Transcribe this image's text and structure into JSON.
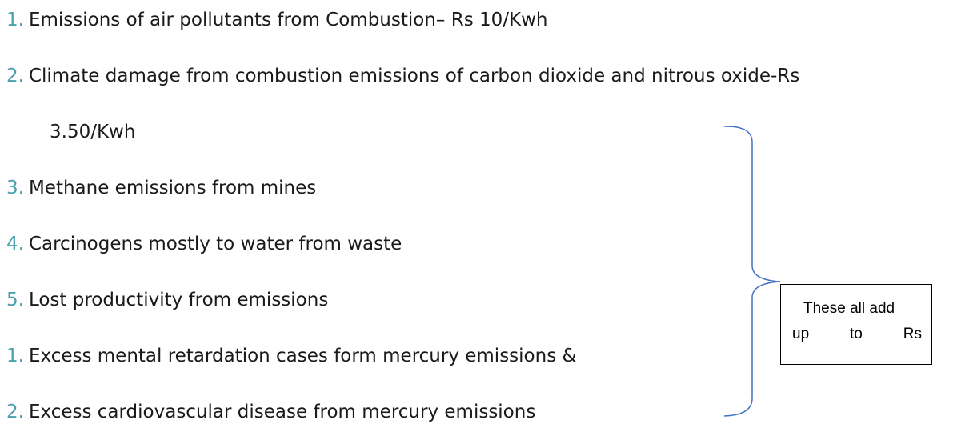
{
  "items": [
    {
      "number": "1.",
      "text": "Emissions of air pollutants from Combustion– Rs 10/Kwh"
    },
    {
      "number": "2.",
      "text": "Climate damage from combustion emissions of carbon dioxide and nitrous oxide-Rs",
      "continuation": "3.50/Kwh"
    },
    {
      "number": "3.",
      "text": "Methane emissions from mines"
    },
    {
      "number": "4.",
      "text": "Carcinogens mostly to water from waste"
    },
    {
      "number": "5.",
      "text": "Lost productivity from emissions"
    },
    {
      "number": "1.",
      "text": "Excess mental retardation cases form mercury emissions &"
    },
    {
      "number": "2.",
      "text": "Excess cardiovascular disease from mercury emissions"
    }
  ],
  "box": {
    "lines": [
      "These all add",
      "up to Rs"
    ]
  }
}
